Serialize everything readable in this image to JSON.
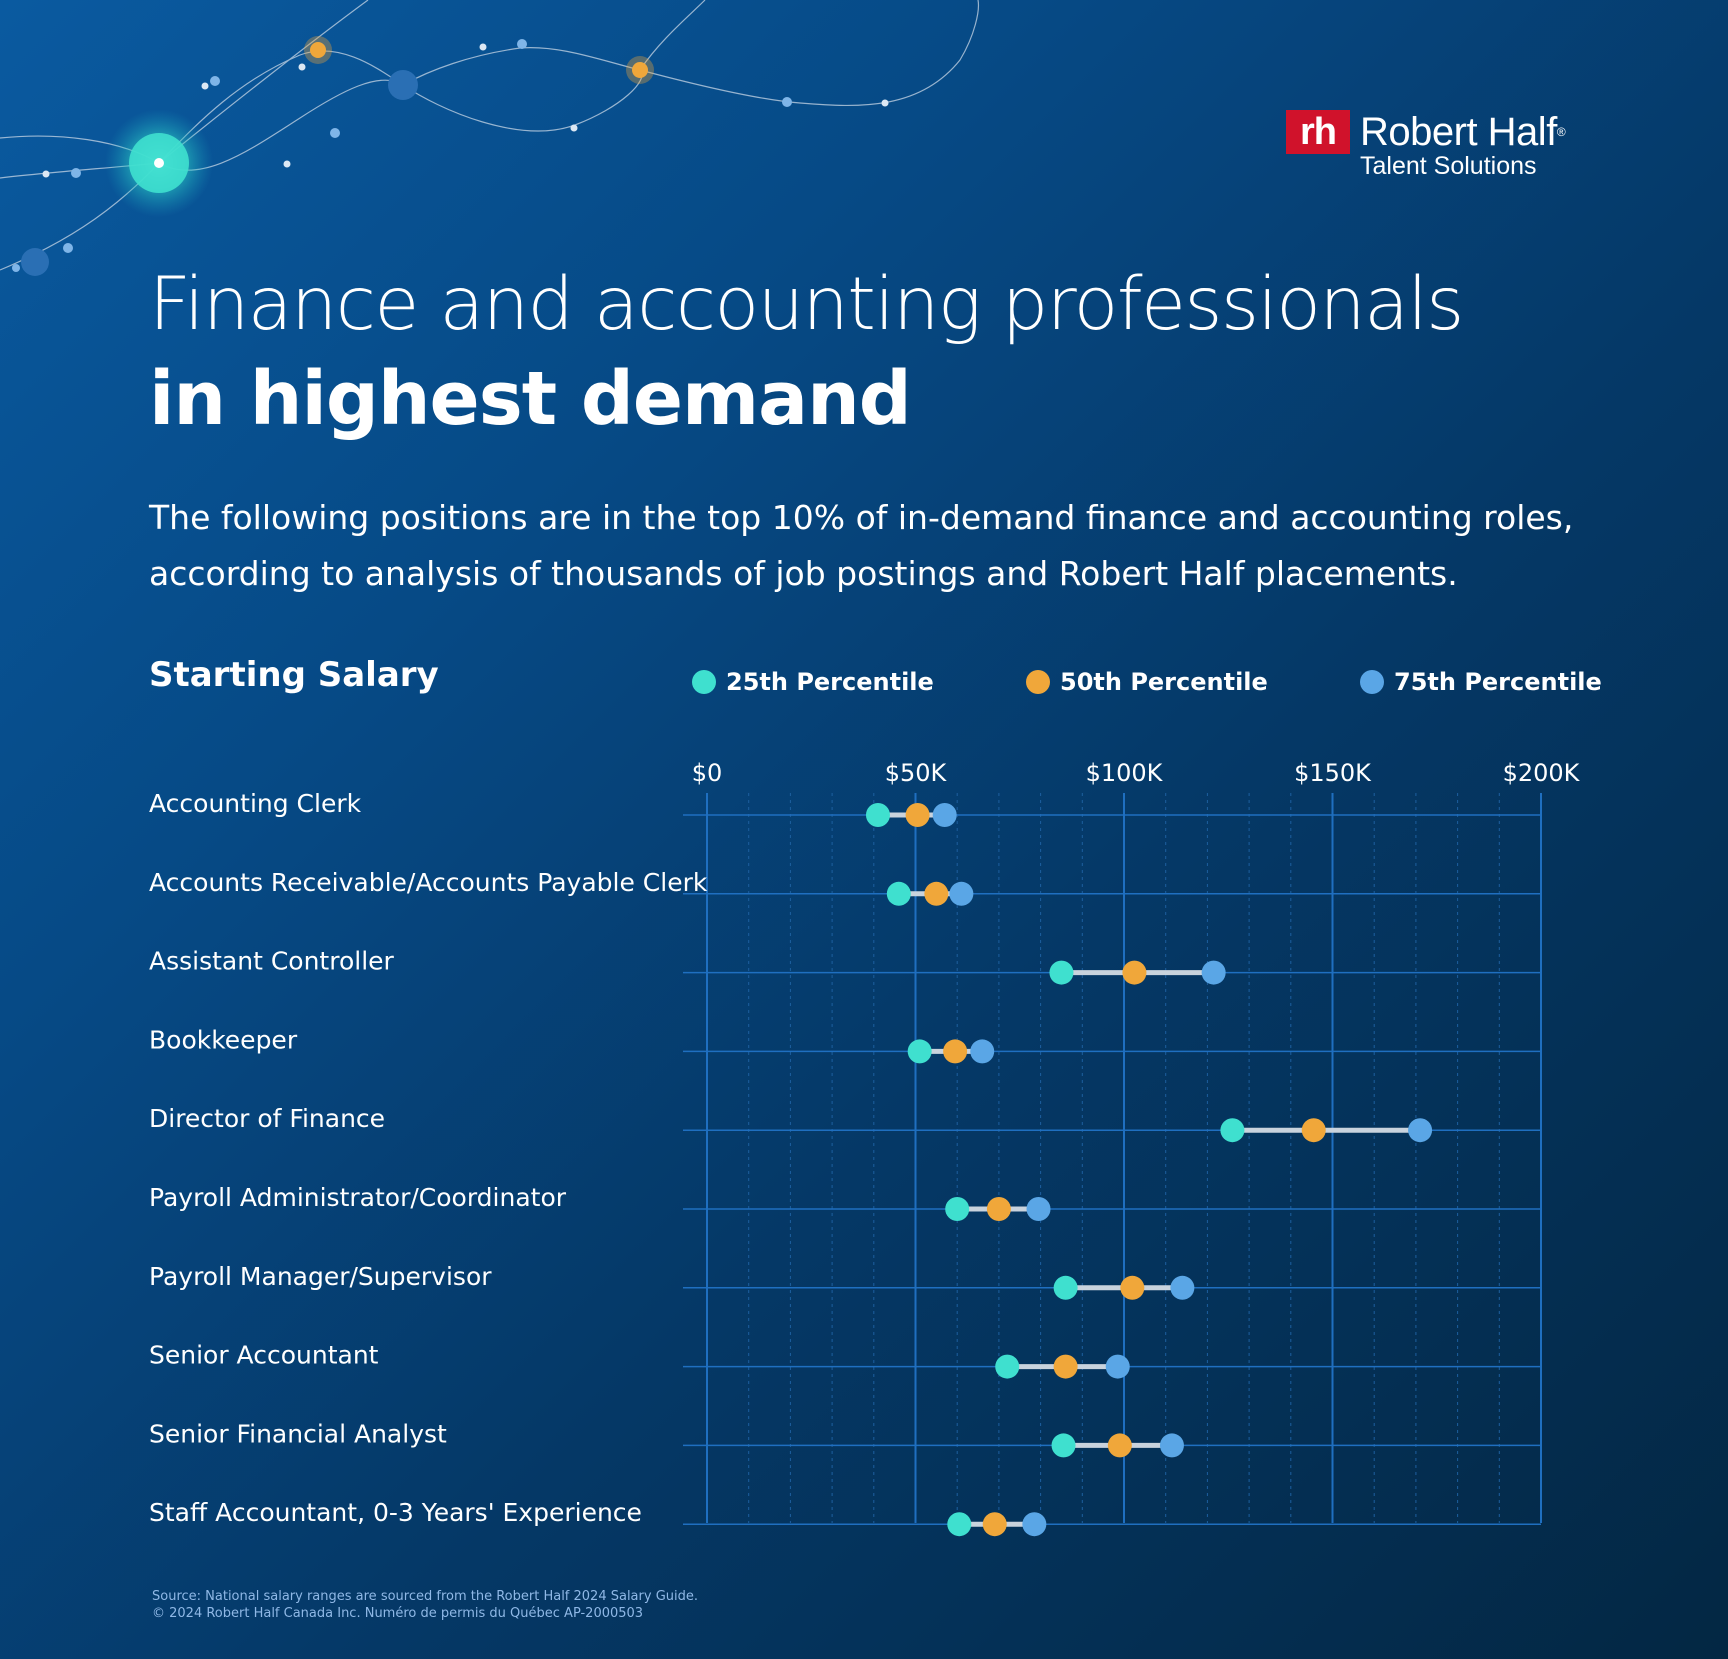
{
  "brand": {
    "logo_mark": "rh",
    "name": "Robert Half",
    "registered": "®",
    "subtitle": "Talent Solutions"
  },
  "title": {
    "line1": "Finance and accounting professionals",
    "line2": "in highest demand"
  },
  "intro": "The following positions are in the top 10% of in-demand finance and accounting roles, according to analysis of thousands of job postings and Robert Half placements.",
  "section_title": "Starting Salary",
  "colors": {
    "p25": "#3fe0cf",
    "p50": "#f0a73a",
    "p75": "#5aa6e6",
    "connector": "#c9d3dd",
    "grid_major": "#1f6fc0",
    "grid_minor": "#1d5f9f"
  },
  "chart_data": {
    "type": "dot",
    "title": "Starting Salary",
    "xlim": [
      0,
      200000
    ],
    "xticks": [
      0,
      50000,
      100000,
      150000,
      200000
    ],
    "xtick_labels": [
      "$0",
      "$50K",
      "$100K",
      "$150K",
      "$200K"
    ],
    "legend": [
      {
        "key": "p25",
        "label": "25th Percentile"
      },
      {
        "key": "p50",
        "label": "50th Percentile"
      },
      {
        "key": "p75",
        "label": "75th Percentile"
      }
    ],
    "categories": [
      "Accounting Clerk",
      "Accounts Receivable/Accounts Payable Clerk",
      "Assistant Controller",
      "Bookkeeper",
      "Director of Finance",
      "Payroll Administrator/Coordinator",
      "Payroll Manager/Supervisor",
      "Senior Accountant",
      "Senior Financial Analyst",
      "Staff Accountant, 0-3 Years' Experience"
    ],
    "series": [
      {
        "name": "25th Percentile",
        "key": "p25",
        "values": [
          41000,
          46000,
          85000,
          51000,
          126000,
          60000,
          86000,
          72000,
          85500,
          60500
        ]
      },
      {
        "name": "50th Percentile",
        "key": "p50",
        "values": [
          50500,
          55000,
          102500,
          59500,
          145500,
          70000,
          102000,
          86000,
          99000,
          69000
        ]
      },
      {
        "name": "75th Percentile",
        "key": "p75",
        "values": [
          57000,
          61000,
          121500,
          66000,
          171000,
          79500,
          114000,
          98500,
          111500,
          78500
        ]
      }
    ]
  },
  "footer": {
    "source": "Source: National salary ranges are sourced from the Robert Half 2024 Salary Guide.",
    "copyright": "© 2024 Robert Half Canada Inc. Numéro de permis du Québec AP-2000503"
  }
}
